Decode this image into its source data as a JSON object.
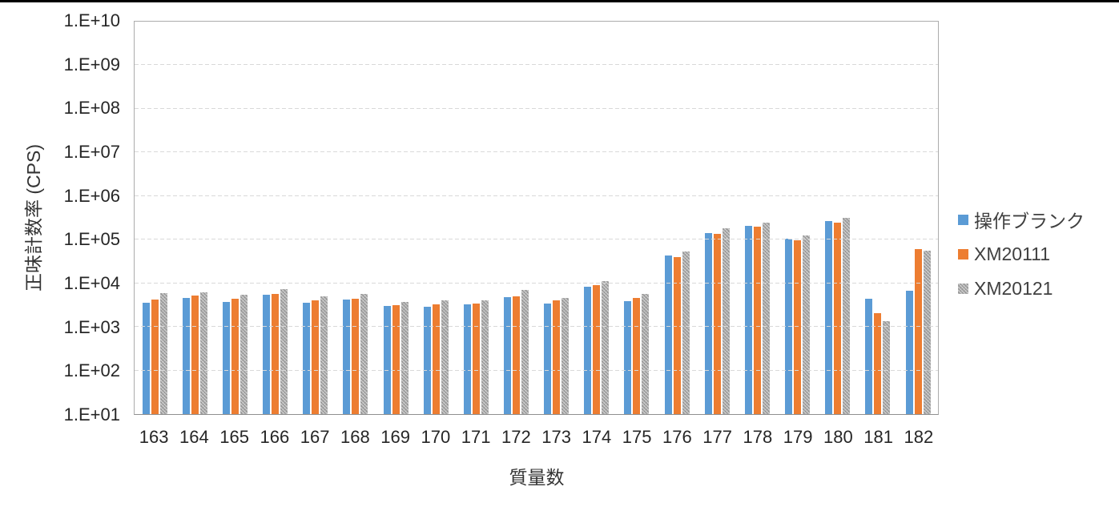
{
  "chart_data": {
    "type": "bar",
    "title": "",
    "xlabel": "質量数",
    "ylabel": "正味計数率 (CPS)",
    "y_scale": "log",
    "ylim": [
      10,
      10000000000
    ],
    "y_tick_labels": [
      "1.E+10",
      "1.E+09",
      "1.E+08",
      "1.E+07",
      "1.E+06",
      "1.E+05",
      "1.E+04",
      "1.E+03",
      "1.E+02",
      "1.E+01"
    ],
    "grid": true,
    "legend_position": "right",
    "categories": [
      "163",
      "164",
      "165",
      "166",
      "167",
      "168",
      "169",
      "170",
      "171",
      "172",
      "173",
      "174",
      "175",
      "176",
      "177",
      "178",
      "179",
      "180",
      "181",
      "182"
    ],
    "series": [
      {
        "name": "操作ブランク",
        "color": "#5B9BD5",
        "pattern": "solid",
        "values": [
          3600,
          4600,
          3700,
          5500,
          3600,
          4200,
          3000,
          2900,
          3250,
          4800,
          3500,
          8200,
          3950,
          44000,
          140000,
          205000,
          105000,
          265000,
          4400,
          6800
        ]
      },
      {
        "name": "XM20111",
        "color": "#ED7D31",
        "pattern": "solid",
        "values": [
          4300,
          5200,
          4400,
          5800,
          4000,
          4500,
          3200,
          3300,
          3400,
          5000,
          4100,
          9000,
          4550,
          40000,
          135000,
          195000,
          98000,
          245000,
          2100,
          61000
        ]
      },
      {
        "name": "XM20121",
        "color": "#A6A6A6",
        "pattern": "dotted",
        "values": [
          5900,
          6200,
          5400,
          7300,
          5000,
          5800,
          3700,
          4000,
          4100,
          7000,
          4600,
          11000,
          5600,
          53000,
          180000,
          250000,
          127000,
          315000,
          1350,
          57000
        ]
      }
    ],
    "colors": {
      "plot_border": "#ABABAB",
      "axis_line": "#8F8F8F",
      "gridline": "#D9D9D9",
      "top_border_line": "#000000",
      "text": "#262626"
    }
  }
}
